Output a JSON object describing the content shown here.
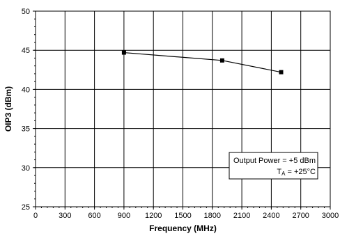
{
  "chart_data": {
    "type": "line",
    "xlabel": "Frequency (MHz)",
    "ylabel": "OIP3 (dBm)",
    "xlim": [
      0,
      3000
    ],
    "ylim": [
      25,
      50
    ],
    "x_ticks": [
      0,
      300,
      600,
      900,
      1200,
      1500,
      1800,
      2100,
      2400,
      2700,
      3000
    ],
    "y_ticks": [
      25,
      30,
      35,
      40,
      45,
      50
    ],
    "grid": true,
    "series": [
      {
        "x": [
          900,
          1900,
          2500
        ],
        "y": [
          44.7,
          43.7,
          42.2
        ]
      }
    ],
    "annotation": {
      "line1": "Output Power = +5 dBm",
      "line2_main": "T",
      "line2_sub": "A",
      "line2_rest": " = +25°C",
      "placement": "lower-right"
    }
  }
}
